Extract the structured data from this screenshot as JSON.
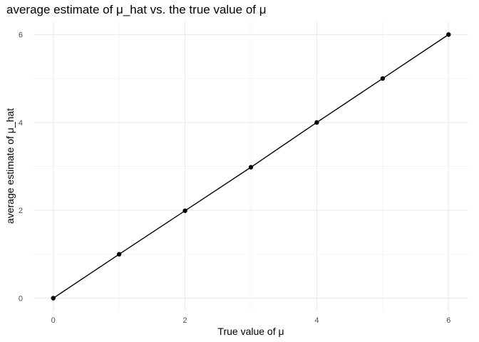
{
  "chart_data": {
    "type": "line",
    "title": "average estimate of μ_hat vs. the true value of μ",
    "xlabel": "True value of μ",
    "ylabel": "average estimate of μ_hat",
    "x": [
      0,
      1,
      2,
      3,
      4,
      5,
      6
    ],
    "series": [
      {
        "values": [
          0.0,
          1.0,
          1.99,
          2.98,
          4.0,
          5.0,
          6.0
        ]
      }
    ],
    "xlim": [
      -0.3,
      6.3
    ],
    "ylim": [
      -0.3,
      6.3
    ],
    "x_ticks": [
      0,
      2,
      4,
      6
    ],
    "y_ticks": [
      0,
      2,
      4,
      6
    ],
    "grid": true,
    "line_color": "#000000",
    "point_color": "#000000",
    "grid_major_color": "#ebebeb",
    "grid_minor_color": "#f5f5f5"
  }
}
